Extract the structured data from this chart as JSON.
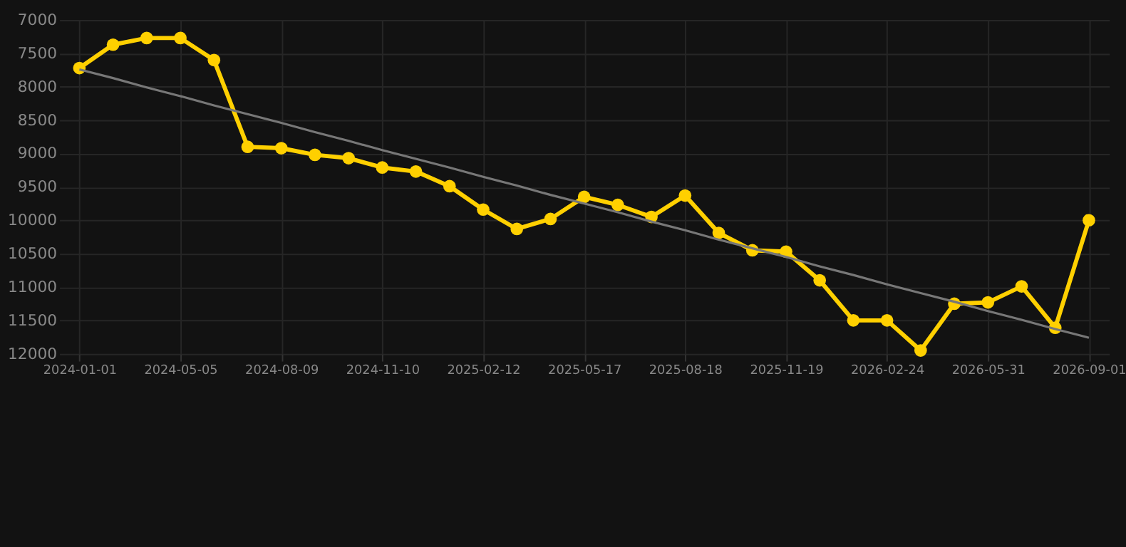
{
  "chart_data": {
    "type": "line",
    "categories": [
      "2024-01-01",
      null,
      null,
      "2024-05-05",
      null,
      null,
      "2024-08-09",
      null,
      null,
      "2024-11-10",
      null,
      null,
      "2025-02-12",
      null,
      null,
      "2025-05-17",
      null,
      null,
      "2025-08-18",
      null,
      null,
      "2025-11-19",
      null,
      null,
      "2026-02-24",
      null,
      null,
      "2026-05-31",
      null,
      null,
      "2026-09-01"
    ],
    "series": [
      {
        "color": "#ffd000",
        "marker": "circle",
        "values": [
          7720,
          7370,
          7270,
          7270,
          7600,
          8900,
          8920,
          9020,
          9070,
          9210,
          9270,
          9490,
          9840,
          10130,
          9980,
          9650,
          9770,
          9950,
          9630,
          10190,
          10450,
          10470,
          10900,
          11500,
          11500,
          11950,
          11250,
          11230,
          10990,
          11610,
          10000
        ]
      },
      {
        "type": "line",
        "color": "#777777",
        "marker": "none",
        "values": [
          7740,
          7870,
          8010,
          8140,
          8280,
          8410,
          8540,
          8680,
          8810,
          8950,
          9080,
          9210,
          9350,
          9480,
          9620,
          9750,
          9880,
          10020,
          10150,
          10290,
          10420,
          10550,
          10690,
          10820,
          10960,
          11090,
          11220,
          11360,
          11490,
          11630,
          11760
        ]
      }
    ],
    "ylim": [
      12000,
      7000
    ],
    "yticks": [
      12000,
      11500,
      11000,
      10500,
      10000,
      9500,
      9000,
      8500,
      8000,
      7500,
      7000
    ],
    "grid": true
  }
}
